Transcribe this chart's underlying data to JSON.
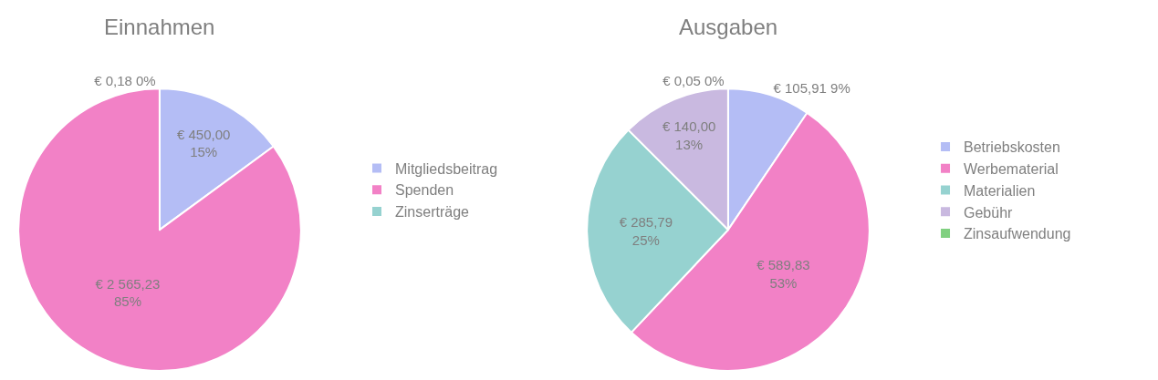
{
  "chart_data": [
    {
      "type": "pie",
      "title": "Einnahmen",
      "categories": [
        "Mitgliedsbeitrag",
        "Spenden",
        "Zinserträge"
      ],
      "values": [
        450.0,
        2565.23,
        0.18
      ],
      "colors": [
        "#b4bdf5",
        "#f281c6",
        "#96d2d0"
      ],
      "value_labels": [
        "€ 450,00\n15%",
        "€ 2 565,23\n85%",
        "€ 0,18 0%"
      ],
      "legend": "right"
    },
    {
      "type": "pie",
      "title": "Ausgaben",
      "categories": [
        "Betriebskosten",
        "Werbematerial",
        "Materialien",
        "Gebühr",
        "Zinsaufwendung"
      ],
      "values": [
        105.91,
        589.83,
        285.79,
        140.0,
        0.05
      ],
      "colors": [
        "#b4bdf5",
        "#f281c6",
        "#96d2d0",
        "#c9b9e0",
        "#80d080"
      ],
      "value_labels": [
        "€ 105,91 9%",
        "€ 589,83\n53%",
        "€ 285,79\n25%",
        "€ 140,00\n13%",
        "€ 0,05 0%"
      ],
      "legend": "right"
    }
  ]
}
